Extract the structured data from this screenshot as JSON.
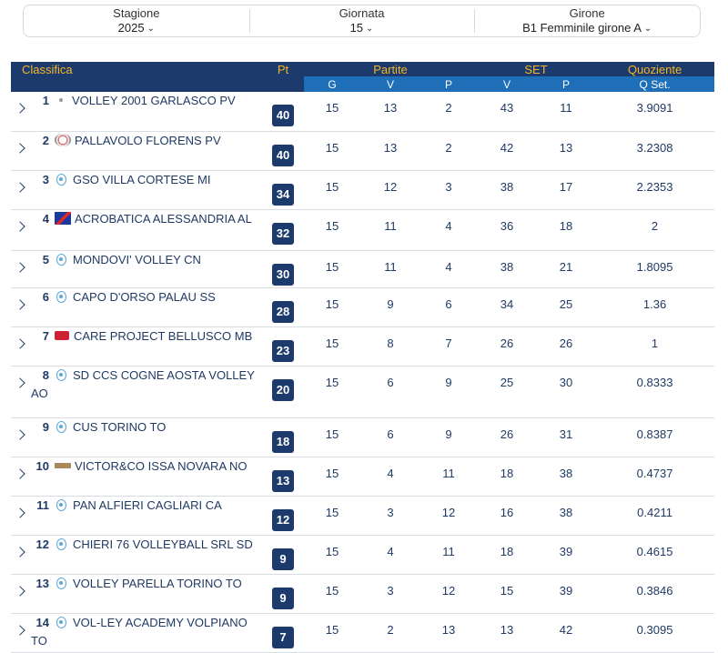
{
  "filters": {
    "stagione": {
      "label": "Stagione",
      "value": "2025"
    },
    "giornata": {
      "label": "Giornata",
      "value": "15"
    },
    "girone": {
      "label": "Girone",
      "value": "B1 Femminile girone A"
    }
  },
  "table": {
    "header": {
      "classifica": "Classifica",
      "pt": "Pt",
      "partite": "Partite",
      "set": "SET",
      "quoziente": "Quoziente",
      "g": "G",
      "v": "V",
      "p": "P",
      "set_v": "V",
      "set_p": "P",
      "qset": "Q Set."
    },
    "rows": [
      {
        "pos": "1",
        "logo": "dot",
        "team": "VOLLEY 2001 GARLASCO PV",
        "pt": "40",
        "g": "15",
        "v": "13",
        "p": "2",
        "sv": "43",
        "sp": "11",
        "q": "3.9091"
      },
      {
        "pos": "2",
        "logo": "florens-logo",
        "team": "PALLAVOLO FLORENS PV",
        "pt": "40",
        "g": "15",
        "v": "13",
        "p": "2",
        "sv": "42",
        "sp": "13",
        "q": "3.2308"
      },
      {
        "pos": "3",
        "logo": "fipav-logo",
        "team": "GSO VILLA CORTESE MI",
        "pt": "34",
        "g": "15",
        "v": "12",
        "p": "3",
        "sv": "38",
        "sp": "17",
        "q": "2.2353"
      },
      {
        "pos": "4",
        "logo": "acrobatica-logo",
        "team": "ACROBATICA ALESSANDRIA AL",
        "pt": "32",
        "g": "15",
        "v": "11",
        "p": "4",
        "sv": "36",
        "sp": "18",
        "q": "2"
      },
      {
        "pos": "5",
        "logo": "fipav-logo",
        "team": "MONDOVI' VOLLEY CN",
        "pt": "30",
        "g": "15",
        "v": "11",
        "p": "4",
        "sv": "38",
        "sp": "21",
        "q": "1.8095"
      },
      {
        "pos": "6",
        "logo": "fipav-logo",
        "team": "CAPO D'ORSO PALAU SS",
        "pt": "28",
        "g": "15",
        "v": "9",
        "p": "6",
        "sv": "34",
        "sp": "25",
        "q": "1.36"
      },
      {
        "pos": "7",
        "logo": "care-logo",
        "team": "CARE PROJECT BELLUSCO MB",
        "pt": "23",
        "g": "15",
        "v": "8",
        "p": "7",
        "sv": "26",
        "sp": "26",
        "q": "1"
      },
      {
        "pos": "8",
        "logo": "fipav-logo",
        "team": "SD CCS COGNE AOSTA VOLLEY AO",
        "pt": "20",
        "g": "15",
        "v": "6",
        "p": "9",
        "sv": "25",
        "sp": "30",
        "q": "0.8333"
      },
      {
        "pos": "9",
        "logo": "fipav-logo",
        "team": "CUS TORINO TO",
        "pt": "18",
        "g": "15",
        "v": "6",
        "p": "9",
        "sv": "26",
        "sp": "31",
        "q": "0.8387"
      },
      {
        "pos": "10",
        "logo": "victor-logo",
        "team": "VICTOR&CO ISSA NOVARA NO",
        "pt": "13",
        "g": "15",
        "v": "4",
        "p": "11",
        "sv": "18",
        "sp": "38",
        "q": "0.4737"
      },
      {
        "pos": "11",
        "logo": "fipav-logo",
        "team": "PAN ALFIERI CAGLIARI CA",
        "pt": "12",
        "g": "15",
        "v": "3",
        "p": "12",
        "sv": "16",
        "sp": "38",
        "q": "0.4211"
      },
      {
        "pos": "12",
        "logo": "fipav-logo",
        "team": "CHIERI 76 VOLLEYBALL SRL SD",
        "pt": "9",
        "g": "15",
        "v": "4",
        "p": "11",
        "sv": "18",
        "sp": "39",
        "q": "0.4615"
      },
      {
        "pos": "13",
        "logo": "fipav-logo",
        "team": "VOLLEY PARELLA TORINO TO",
        "pt": "9",
        "g": "15",
        "v": "3",
        "p": "12",
        "sv": "15",
        "sp": "39",
        "q": "0.3846"
      },
      {
        "pos": "14",
        "logo": "fipav-logo",
        "team": "VOL-LEY ACADEMY VOLPIANO TO",
        "pt": "7",
        "g": "15",
        "v": "2",
        "p": "13",
        "sv": "13",
        "sp": "42",
        "q": "0.3095"
      }
    ]
  },
  "colors": {
    "header_dark": "#1c3a6b",
    "header_blue": "#1e6fb8",
    "header_accent": "#f3b62a",
    "text": "#1f3a63"
  }
}
